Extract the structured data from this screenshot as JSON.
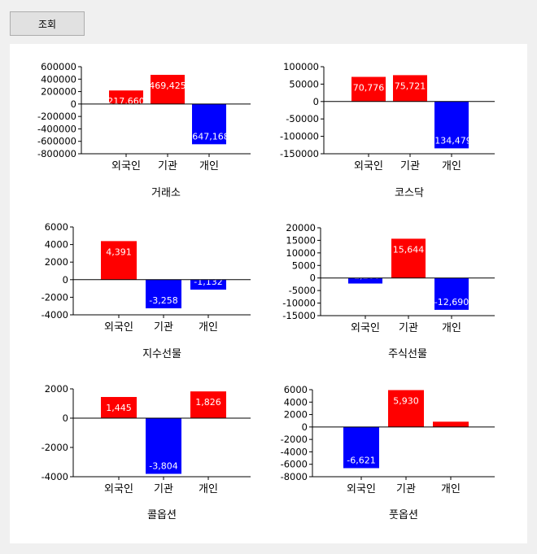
{
  "query_button": {
    "label": "조회"
  },
  "colors": {
    "positive": "#ff0000",
    "negative": "#0000ff",
    "axis": "#000000",
    "label_text": "#ffffff"
  },
  "chart_data": [
    {
      "type": "bar",
      "title": "거래소",
      "categories": [
        "외국인",
        "기관",
        "개인"
      ],
      "values": [
        217660,
        469425,
        -647168
      ],
      "value_labels": [
        "217,660",
        "469,425",
        "-647,168"
      ],
      "ylim": [
        -800000,
        600000
      ],
      "yticks": [
        600000,
        400000,
        200000,
        0,
        -200000,
        -400000,
        -600000,
        -800000
      ],
      "ytick_labels": [
        "600000",
        "400000",
        "200000",
        "0",
        "-200000",
        "-400000",
        "-600000",
        "-800000"
      ]
    },
    {
      "type": "bar",
      "title": "코스닥",
      "categories": [
        "외국인",
        "기관",
        "개인"
      ],
      "values": [
        70776,
        75721,
        -134479
      ],
      "value_labels": [
        "70,776",
        "75,721",
        "-134,479"
      ],
      "ylim": [
        -150000,
        100000
      ],
      "yticks": [
        100000,
        50000,
        0,
        -50000,
        -100000,
        -150000
      ],
      "ytick_labels": [
        "100000",
        "50000",
        "0",
        "-50000",
        "-100000",
        "-150000"
      ]
    },
    {
      "type": "bar",
      "title": "지수선물",
      "categories": [
        "외국인",
        "기관",
        "개인"
      ],
      "values": [
        4391,
        -3258,
        -1132
      ],
      "value_labels": [
        "4,391",
        "-3,258",
        "-1,132"
      ],
      "ylim": [
        -4000,
        6000
      ],
      "yticks": [
        6000,
        4000,
        2000,
        0,
        -2000,
        -4000
      ],
      "ytick_labels": [
        "6000",
        "4000",
        "2000",
        "0",
        "-2000",
        "-4000"
      ]
    },
    {
      "type": "bar",
      "title": "주식선물",
      "categories": [
        "외국인",
        "기관",
        "개인"
      ],
      "values": [
        -2206,
        15644,
        -12690
      ],
      "value_labels": [
        "-2,206",
        "15,644",
        "-12,690"
      ],
      "ylim": [
        -15000,
        20000
      ],
      "yticks": [
        20000,
        15000,
        10000,
        5000,
        0,
        -5000,
        -10000,
        -15000
      ],
      "ytick_labels": [
        "20000",
        "15000",
        "10000",
        "5000",
        "0",
        "-5000",
        "-10000",
        "-15000"
      ]
    },
    {
      "type": "bar",
      "title": "콜옵션",
      "categories": [
        "외국인",
        "기관",
        "개인"
      ],
      "values": [
        1445,
        -3804,
        1826
      ],
      "value_labels": [
        "1,445",
        "-3,804",
        "1,826"
      ],
      "ylim": [
        -4000,
        2000
      ],
      "yticks": [
        2000,
        0,
        -2000,
        -4000
      ],
      "ytick_labels": [
        "2000",
        "0",
        "-2000",
        "-4000"
      ]
    },
    {
      "type": "bar",
      "title": "풋옵션",
      "categories": [
        "외국인",
        "기관",
        "개인"
      ],
      "values": [
        -6621,
        5930,
        850
      ],
      "value_labels": [
        "-6,621",
        "5,930",
        ""
      ],
      "ylim": [
        -8000,
        6000
      ],
      "yticks": [
        6000,
        4000,
        2000,
        0,
        -2000,
        -4000,
        -6000,
        -8000
      ],
      "ytick_labels": [
        "6000",
        "4000",
        "2000",
        "0",
        "-2000",
        "-4000",
        "-6000",
        "-8000"
      ]
    }
  ]
}
